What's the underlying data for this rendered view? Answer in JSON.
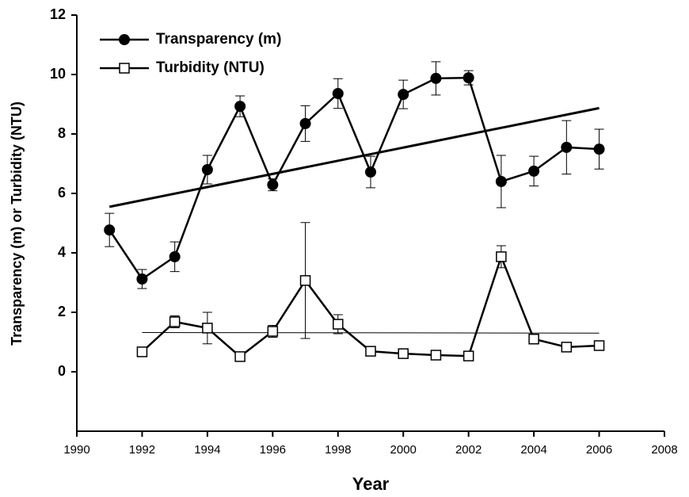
{
  "chart_data": {
    "type": "line",
    "x_label": "Year",
    "y_label": "Transparency (m) or Turbidity (NTU)",
    "xlim": [
      1990,
      2008
    ],
    "xticks": [
      1990,
      1992,
      1994,
      1996,
      1998,
      2000,
      2002,
      2004,
      2006,
      2008
    ],
    "ylim": [
      -2,
      12
    ],
    "yticks": [
      0,
      2,
      4,
      6,
      8,
      10,
      12
    ],
    "legend": "upper left",
    "series": [
      {
        "name": "Transparency (m)",
        "color": "#000000",
        "marker": "filled-circle",
        "x": [
          1991,
          1992,
          1993,
          1994,
          1995,
          1996,
          1997,
          1998,
          1999,
          2000,
          2001,
          2002,
          2003,
          2004,
          2005,
          2006
        ],
        "values": [
          4.77,
          3.12,
          3.87,
          6.8,
          8.93,
          6.29,
          8.35,
          9.36,
          6.72,
          9.33,
          9.87,
          9.89,
          6.4,
          6.75,
          7.55,
          7.49
        ],
        "errors": [
          0.56,
          0.32,
          0.5,
          0.48,
          0.35,
          0.2,
          0.6,
          0.5,
          0.53,
          0.48,
          0.56,
          0.24,
          0.88,
          0.5,
          0.9,
          0.67
        ]
      },
      {
        "name": "Turbidity (NTU)",
        "color": "#000000",
        "marker": "open-square",
        "x": [
          1992,
          1993,
          1994,
          1995,
          1996,
          1997,
          1998,
          1999,
          2000,
          2001,
          2002,
          2003,
          2004,
          2005,
          2006
        ],
        "values": [
          0.67,
          1.68,
          1.47,
          0.51,
          1.36,
          3.07,
          1.6,
          0.69,
          0.61,
          0.56,
          0.53,
          3.87,
          1.1,
          0.83,
          0.88
        ],
        "errors": [
          0.05,
          0.2,
          0.53,
          0.05,
          0.2,
          1.95,
          0.32,
          0.05,
          0.05,
          0.05,
          0.05,
          0.37,
          0.05,
          0.05,
          0.05
        ]
      }
    ],
    "trend_lines": [
      {
        "x": [
          1991,
          2006
        ],
        "values": [
          5.55,
          8.87
        ],
        "width": 3
      },
      {
        "x": [
          1992,
          2006
        ],
        "values": [
          1.32,
          1.3
        ],
        "width": 1
      }
    ]
  }
}
